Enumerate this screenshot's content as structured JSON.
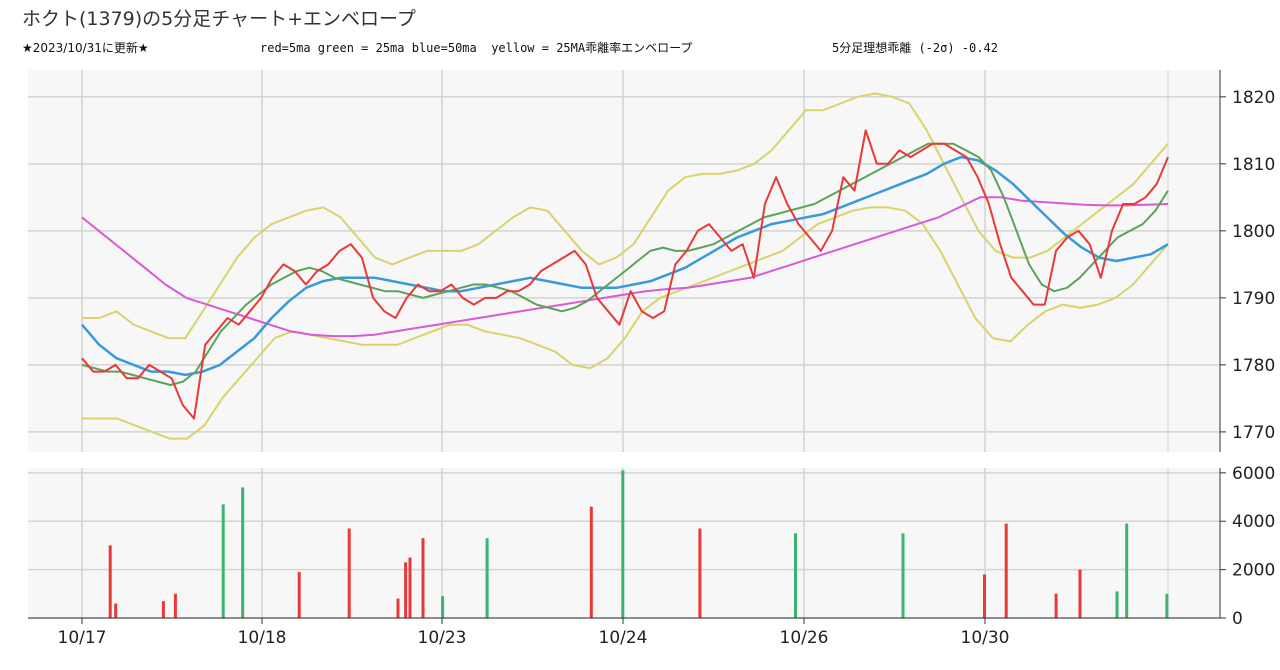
{
  "header": {
    "title": "ホクト(1379)の5分足チャート+エンベロープ",
    "updated": "★2023/10/31に更新★",
    "ma_legend": "red=5ma green = 25ma blue=50ma  yellow = 25MA乖離率エンベロープ",
    "deviation": "5分足理想乖離 (-2σ) -0.42"
  },
  "colors": {
    "ma5": "#e8383a",
    "ma25": "#5aa35a",
    "ma50": "#3a9ad9",
    "ma_long": "#d85ad8",
    "envelope": "#d9d36a",
    "up": "#3cb371",
    "down": "#e8383a",
    "grid": "#d4d4d4",
    "panel_bg": "#f7f7f7"
  },
  "chart_data": [
    {
      "type": "line",
      "title": "ホクト(1379)の5分足チャート+エンベロープ",
      "xlabel": "",
      "ylabel": "",
      "x_ticks": [
        "10/17",
        "10/18",
        "10/23",
        "10/24",
        "10/26",
        "10/30"
      ],
      "ylim": [
        1767,
        1824
      ],
      "y_ticks": [
        1770,
        1780,
        1790,
        1800,
        1810,
        1820
      ],
      "grid": true,
      "series": [
        {
          "name": "5ma",
          "color": "#e8383a",
          "values": [
            1781,
            1779,
            1779,
            1780,
            1778,
            1778,
            1780,
            1779,
            1778,
            1774,
            1772,
            1783,
            1785,
            1787,
            1786,
            1788,
            1790,
            1793,
            1795,
            1794,
            1792,
            1794,
            1795,
            1797,
            1798,
            1796,
            1790,
            1788,
            1787,
            1790,
            1792,
            1791,
            1791,
            1792,
            1790,
            1789,
            1790,
            1790,
            1791,
            1791,
            1792,
            1794,
            1795,
            1796,
            1797,
            1795,
            1790,
            1788,
            1786,
            1791,
            1788,
            1787,
            1788,
            1795,
            1797,
            1800,
            1801,
            1799,
            1797,
            1798,
            1793,
            1804,
            1808,
            1804,
            1801,
            1799,
            1797,
            1800,
            1808,
            1806,
            1815,
            1810,
            1810,
            1812,
            1811,
            1812,
            1813,
            1813,
            1812,
            1811,
            1808,
            1804,
            1798,
            1793,
            1791,
            1789,
            1789,
            1797,
            1799,
            1800,
            1798,
            1793,
            1800,
            1804,
            1804,
            1805,
            1807,
            1811
          ]
        },
        {
          "name": "25ma",
          "color": "#5aa35a",
          "values": [
            1780,
            1779.5,
            1779,
            1779,
            1778.5,
            1778,
            1777.5,
            1777,
            1777.5,
            1779,
            1782,
            1785,
            1787,
            1789,
            1790.5,
            1792,
            1793,
            1794,
            1794.5,
            1794,
            1793,
            1792.5,
            1792,
            1791.5,
            1791,
            1791,
            1790.5,
            1790,
            1790.5,
            1791,
            1791.5,
            1792,
            1792,
            1791.5,
            1791,
            1790,
            1789,
            1788.5,
            1788,
            1788.5,
            1789.5,
            1791,
            1792.5,
            1794,
            1795.5,
            1797,
            1797.5,
            1797,
            1797,
            1797.5,
            1798,
            1799,
            1800,
            1801,
            1802,
            1802.5,
            1803,
            1803.5,
            1804,
            1805,
            1806,
            1807,
            1808,
            1809,
            1810,
            1811,
            1812,
            1813,
            1813,
            1813,
            1812,
            1811,
            1809,
            1805,
            1800,
            1795,
            1792,
            1791,
            1791.5,
            1793,
            1795,
            1797,
            1799,
            1800,
            1801,
            1803,
            1806
          ]
        },
        {
          "name": "50ma",
          "color": "#3a9ad9",
          "values": [
            1786,
            1783,
            1781,
            1780,
            1779,
            1779,
            1778.5,
            1779,
            1780,
            1782,
            1784,
            1787,
            1789.5,
            1791.5,
            1792.5,
            1793,
            1793,
            1793,
            1792.5,
            1792,
            1791.5,
            1791,
            1791,
            1791.5,
            1792,
            1792.5,
            1793,
            1792.5,
            1792,
            1791.5,
            1791.5,
            1791.5,
            1792,
            1792.5,
            1793.5,
            1794.5,
            1796,
            1797.5,
            1799,
            1800,
            1801,
            1801.5,
            1802,
            1802.5,
            1803.5,
            1804.5,
            1805.5,
            1806.5,
            1807.5,
            1808.5,
            1810,
            1811,
            1810.5,
            1809,
            1807,
            1804.5,
            1802,
            1799.5,
            1797.5,
            1796,
            1795.5,
            1796,
            1796.5,
            1798
          ]
        },
        {
          "name": "long_ma",
          "color": "#d85ad8",
          "values": [
            1802,
            1799.5,
            1797,
            1794.5,
            1792,
            1790,
            1789,
            1788,
            1787,
            1786,
            1785,
            1784.5,
            1784.3,
            1784.3,
            1784.5,
            1785,
            1785.5,
            1786,
            1786.5,
            1787,
            1787.5,
            1788,
            1788.5,
            1789,
            1789.5,
            1790,
            1790.5,
            1791,
            1791.3,
            1791.5,
            1792,
            1792.5,
            1793,
            1794,
            1795,
            1796,
            1797,
            1798,
            1799,
            1800,
            1801,
            1802,
            1803.5,
            1805,
            1805,
            1804.5,
            1804.3,
            1804.1,
            1803.9,
            1803.8,
            1803.8,
            1803.9,
            1804
          ]
        },
        {
          "name": "envelope_upper",
          "color": "#d9d36a",
          "values": [
            1787,
            1787,
            1788,
            1786,
            1785,
            1784,
            1784,
            1788,
            1792,
            1796,
            1799,
            1801,
            1802,
            1803,
            1803.5,
            1802,
            1799,
            1796,
            1795,
            1796,
            1797,
            1797,
            1797,
            1798,
            1800,
            1802,
            1803.5,
            1803,
            1800,
            1797,
            1795,
            1796,
            1798,
            1802,
            1806,
            1808,
            1808.5,
            1808.5,
            1809,
            1810,
            1812,
            1815,
            1818,
            1818,
            1819,
            1820,
            1820.5,
            1820,
            1819,
            1815,
            1810,
            1805,
            1800,
            1797,
            1796,
            1796,
            1797,
            1799,
            1801,
            1803,
            1805,
            1807,
            1810,
            1813
          ]
        },
        {
          "name": "envelope_lower",
          "color": "#d9d36a",
          "values": [
            1772,
            1772,
            1772,
            1771,
            1770,
            1769,
            1769,
            1771,
            1775,
            1778,
            1781,
            1784,
            1785,
            1784.5,
            1784,
            1783.5,
            1783,
            1783,
            1783,
            1784,
            1785,
            1786,
            1786,
            1785,
            1784.5,
            1784,
            1783,
            1782,
            1780,
            1779.5,
            1781,
            1784,
            1788,
            1790,
            1791,
            1792,
            1793,
            1794,
            1795,
            1796,
            1797,
            1799,
            1801,
            1802,
            1803,
            1803.5,
            1803.5,
            1803,
            1801,
            1797,
            1792,
            1787,
            1784,
            1783.5,
            1786,
            1788,
            1789,
            1788.5,
            1789,
            1790,
            1792,
            1795,
            1798
          ]
        }
      ]
    },
    {
      "type": "bar",
      "title": "",
      "xlabel": "",
      "ylabel": "",
      "ylim": [
        0,
        6200
      ],
      "y_ticks": [
        0,
        2000,
        4000,
        6000
      ],
      "grid": true,
      "series": [
        {
          "name": "volume_up",
          "color": "#3cb371",
          "bars": [
            [
              0.13,
              4700
            ],
            [
              0.148,
              5400
            ],
            [
              0.332,
              900
            ],
            [
              0.373,
              3300
            ],
            [
              0.498,
              6100
            ],
            [
              0.657,
              3500
            ],
            [
              0.756,
              3500
            ],
            [
              0.953,
              1100
            ],
            [
              0.962,
              3900
            ],
            [
              0.999,
              1000
            ]
          ]
        },
        {
          "name": "volume_down",
          "color": "#e8383a",
          "bars": [
            [
              0.026,
              3000
            ],
            [
              0.031,
              600
            ],
            [
              0.075,
              700
            ],
            [
              0.086,
              1000
            ],
            [
              0.2,
              1900
            ],
            [
              0.246,
              3700
            ],
            [
              0.291,
              800
            ],
            [
              0.298,
              2300
            ],
            [
              0.302,
              2500
            ],
            [
              0.314,
              3300
            ],
            [
              0.469,
              4600
            ],
            [
              0.569,
              3700
            ],
            [
              0.831,
              1800
            ],
            [
              0.851,
              3900
            ],
            [
              0.897,
              1000
            ],
            [
              0.919,
              2000
            ]
          ]
        }
      ]
    }
  ]
}
